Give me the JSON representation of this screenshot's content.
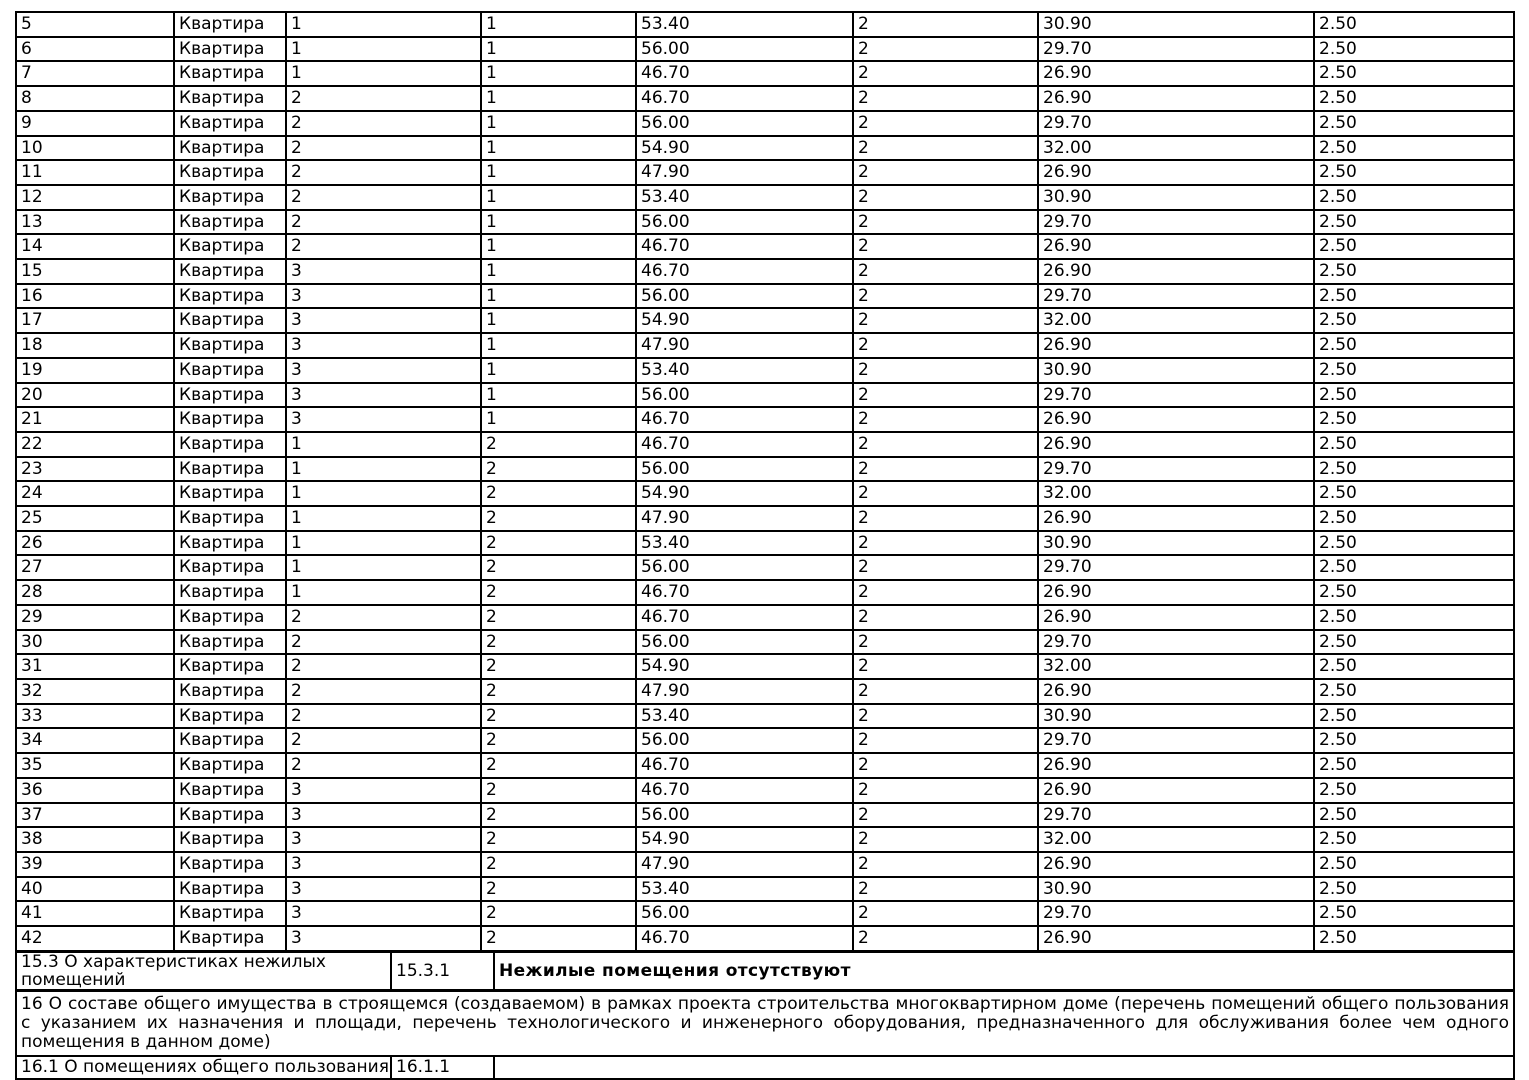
{
  "page": {
    "background_color": "#ffffff",
    "border_color": "#000000",
    "text_color": "#000000"
  },
  "apartments_table": {
    "rows": [
      [
        "5",
        "Квартира",
        "1",
        "1",
        "53.40",
        "2",
        "30.90",
        "2.50"
      ],
      [
        "6",
        "Квартира",
        "1",
        "1",
        "56.00",
        "2",
        "29.70",
        "2.50"
      ],
      [
        "7",
        "Квартира",
        "1",
        "1",
        "46.70",
        "2",
        "26.90",
        "2.50"
      ],
      [
        "8",
        "Квартира",
        "2",
        "1",
        "46.70",
        "2",
        "26.90",
        "2.50"
      ],
      [
        "9",
        "Квартира",
        "2",
        "1",
        "56.00",
        "2",
        "29.70",
        "2.50"
      ],
      [
        "10",
        "Квартира",
        "2",
        "1",
        "54.90",
        "2",
        "32.00",
        "2.50"
      ],
      [
        "11",
        "Квартира",
        "2",
        "1",
        "47.90",
        "2",
        "26.90",
        "2.50"
      ],
      [
        "12",
        "Квартира",
        "2",
        "1",
        "53.40",
        "2",
        "30.90",
        "2.50"
      ],
      [
        "13",
        "Квартира",
        "2",
        "1",
        "56.00",
        "2",
        "29.70",
        "2.50"
      ],
      [
        "14",
        "Квартира",
        "2",
        "1",
        "46.70",
        "2",
        "26.90",
        "2.50"
      ],
      [
        "15",
        "Квартира",
        "3",
        "1",
        "46.70",
        "2",
        "26.90",
        "2.50"
      ],
      [
        "16",
        "Квартира",
        "3",
        "1",
        "56.00",
        "2",
        "29.70",
        "2.50"
      ],
      [
        "17",
        "Квартира",
        "3",
        "1",
        "54.90",
        "2",
        "32.00",
        "2.50"
      ],
      [
        "18",
        "Квартира",
        "3",
        "1",
        "47.90",
        "2",
        "26.90",
        "2.50"
      ],
      [
        "19",
        "Квартира",
        "3",
        "1",
        "53.40",
        "2",
        "30.90",
        "2.50"
      ],
      [
        "20",
        "Квартира",
        "3",
        "1",
        "56.00",
        "2",
        "29.70",
        "2.50"
      ],
      [
        "21",
        "Квартира",
        "3",
        "1",
        "46.70",
        "2",
        "26.90",
        "2.50"
      ],
      [
        "22",
        "Квартира",
        "1",
        "2",
        "46.70",
        "2",
        "26.90",
        "2.50"
      ],
      [
        "23",
        "Квартира",
        "1",
        "2",
        "56.00",
        "2",
        "29.70",
        "2.50"
      ],
      [
        "24",
        "Квартира",
        "1",
        "2",
        "54.90",
        "2",
        "32.00",
        "2.50"
      ],
      [
        "25",
        "Квартира",
        "1",
        "2",
        "47.90",
        "2",
        "26.90",
        "2.50"
      ],
      [
        "26",
        "Квартира",
        "1",
        "2",
        "53.40",
        "2",
        "30.90",
        "2.50"
      ],
      [
        "27",
        "Квартира",
        "1",
        "2",
        "56.00",
        "2",
        "29.70",
        "2.50"
      ],
      [
        "28",
        "Квартира",
        "1",
        "2",
        "46.70",
        "2",
        "26.90",
        "2.50"
      ],
      [
        "29",
        "Квартира",
        "2",
        "2",
        "46.70",
        "2",
        "26.90",
        "2.50"
      ],
      [
        "30",
        "Квартира",
        "2",
        "2",
        "56.00",
        "2",
        "29.70",
        "2.50"
      ],
      [
        "31",
        "Квартира",
        "2",
        "2",
        "54.90",
        "2",
        "32.00",
        "2.50"
      ],
      [
        "32",
        "Квартира",
        "2",
        "2",
        "47.90",
        "2",
        "26.90",
        "2.50"
      ],
      [
        "33",
        "Квартира",
        "2",
        "2",
        "53.40",
        "2",
        "30.90",
        "2.50"
      ],
      [
        "34",
        "Квартира",
        "2",
        "2",
        "56.00",
        "2",
        "29.70",
        "2.50"
      ],
      [
        "35",
        "Квартира",
        "2",
        "2",
        "46.70",
        "2",
        "26.90",
        "2.50"
      ],
      [
        "36",
        "Квартира",
        "3",
        "2",
        "46.70",
        "2",
        "26.90",
        "2.50"
      ],
      [
        "37",
        "Квартира",
        "3",
        "2",
        "56.00",
        "2",
        "29.70",
        "2.50"
      ],
      [
        "38",
        "Квартира",
        "3",
        "2",
        "54.90",
        "2",
        "32.00",
        "2.50"
      ],
      [
        "39",
        "Квартира",
        "3",
        "2",
        "47.90",
        "2",
        "26.90",
        "2.50"
      ],
      [
        "40",
        "Квартира",
        "3",
        "2",
        "53.40",
        "2",
        "30.90",
        "2.50"
      ],
      [
        "41",
        "Квартира",
        "3",
        "2",
        "56.00",
        "2",
        "29.70",
        "2.50"
      ],
      [
        "42",
        "Квартира",
        "3",
        "2",
        "46.70",
        "2",
        "26.90",
        "2.50"
      ]
    ]
  },
  "section_15_3": {
    "label": "15.3 О характеристиках нежилых помещений",
    "code": "15.3.1",
    "value": "Нежилые помещения отсутствуют"
  },
  "section_16": {
    "text": "16 О составе общего имущества в строящемся (создаваемом) в рамках проекта строительства многоквартирном доме (перечень помещений общего пользования с указанием их назначения и площади, перечень технологического и инженерного оборудования, предназначенного для обслуживания более чем одного помещения в данном доме)"
  },
  "section_16_1": {
    "label": "16.1 О помещениях общего пользования",
    "code": "16.1.1",
    "value": ""
  }
}
